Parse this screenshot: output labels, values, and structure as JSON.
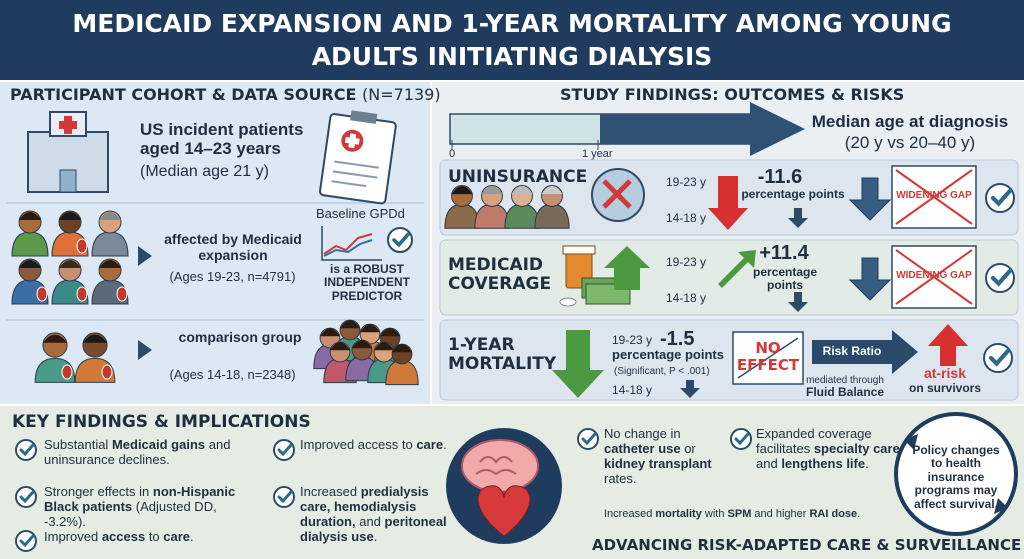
{
  "header": {
    "title": "MEDICAID EXPANSION AND 1-YEAR MORTALITY AMONG YOUNG ADULTS INITIATING DIALYSIS"
  },
  "cohort": {
    "title": "PARTICIPANT COHORT & DATA SOURCE",
    "n": "(N=7139)",
    "population": "US incident patients aged 14–23 years",
    "median_age": "(Median age 21 y)",
    "baseline_label": "Baseline GPDd",
    "baseline_note": "is a ROBUST INDEPENDENT PREDICTOR",
    "affected": "affected by Medicaid expansion",
    "affected_detail": "(Ages 19-23, n=4791)",
    "comparison": "comparison group",
    "comparison_detail": "(Ages 14-18, n=2348)"
  },
  "findings": {
    "title": "STUDY FINDINGS: OUTCOMES & RISKS",
    "timeline_start": "0",
    "timeline_mark": "1 year",
    "median_title": "Median age at diagnosis",
    "median_detail": "(20 y vs 20–40 y)",
    "rows": [
      {
        "label": "UNINSURANCE",
        "older": "19-23 y",
        "younger": "14-18 y",
        "value": "-11.6",
        "unit": "percentage points",
        "badge": "WIDENING GAP"
      },
      {
        "label": "MEDICAID COVERAGE",
        "older": "19-23 y",
        "younger": "14-18 y",
        "value": "+11.4",
        "unit": "percentage points",
        "badge": "WIDENING GAP"
      },
      {
        "label": "1-YEAR MORTALITY",
        "older": "19-23 y",
        "younger": "14-18 y",
        "value": "-1.5",
        "unit": "percentage points",
        "significance": "(Significant, P < .001)",
        "effect": "NO EFFECT",
        "ratio": "Risk Ratio",
        "mediator_prefix": "mediated through",
        "mediator": "Fluid Balance",
        "risk": "at-risk",
        "risk_detail": "on survivors"
      }
    ]
  },
  "key": {
    "title": "KEY FINDINGS & IMPLICATIONS",
    "items": [
      [
        "Substantial ",
        "Medicaid gains",
        " and uninsurance declines."
      ],
      [
        "Stronger effects in ",
        "non-Hispanic Black patients",
        " (Adjusted DD, -3.2%)."
      ],
      [
        "Improved ",
        "access",
        " to ",
        "care",
        "."
      ],
      [
        "Improved access to ",
        "care",
        "."
      ],
      [
        "Increased ",
        "predialysis care, hemodialysis duration,",
        " and ",
        "peritoneal dialysis use",
        "."
      ],
      [
        "No change in ",
        "catheter use",
        " or ",
        "kidney transplant",
        " rates."
      ],
      [
        "Expanded coverage facilitates ",
        "specialty care",
        " and ",
        "lengthens life",
        "."
      ],
      [
        "Increased ",
        "mortality",
        " with ",
        "SPM",
        " and higher ",
        "RAI dose",
        "."
      ]
    ],
    "policy": "Policy changes to health insurance programs may affect survival.",
    "footer": "ADVANCING RISK-ADAPTED CARE & SURVEILLANCE"
  }
}
